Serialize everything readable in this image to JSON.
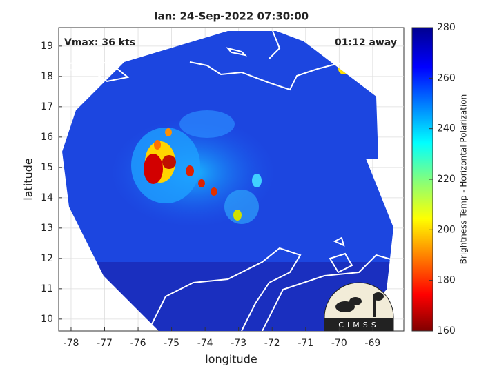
{
  "title": "Ian: 24-Sep-2022 07:30:00",
  "annotations": {
    "vmax": "Vmax: 36 kts",
    "time_away": "01:12 away"
  },
  "axes": {
    "xlabel": "longitude",
    "ylabel": "latitude",
    "xlim": [
      -78.37,
      -68.07
    ],
    "ylim": [
      9.61,
      19.61
    ],
    "xticks": [
      -78,
      -77,
      -76,
      -75,
      -74,
      -73,
      -72,
      -71,
      -70,
      -69
    ],
    "yticks": [
      10,
      11,
      12,
      13,
      14,
      15,
      16,
      17,
      18,
      19
    ],
    "grid": true
  },
  "colorbar": {
    "label": "Brightness Temp - Horizontal Polarization",
    "lim": [
      160,
      280
    ],
    "ticks": [
      160,
      180,
      200,
      220,
      240,
      260,
      280
    ]
  },
  "logo": {
    "text": "CIMSS"
  }
}
